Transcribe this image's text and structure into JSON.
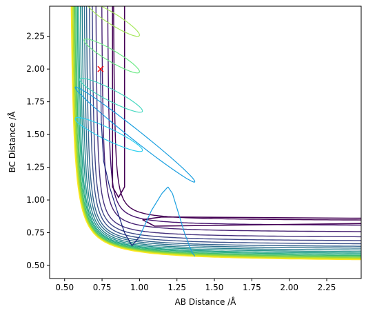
{
  "chart_data": {
    "type": "contour",
    "xlabel": "AB Distance /Å",
    "ylabel": "BC Distance /Å",
    "xlim": [
      0.4,
      2.48
    ],
    "ylim": [
      0.4,
      2.48
    ],
    "xticks": [
      "0.50",
      "0.75",
      "1.00",
      "1.25",
      "1.50",
      "1.75",
      "2.00",
      "2.25"
    ],
    "yticks": [
      "0.50",
      "0.75",
      "1.00",
      "1.25",
      "1.50",
      "1.75",
      "2.00",
      "2.25"
    ],
    "grid": false,
    "colormap": "viridis",
    "marker": {
      "symbol": "x",
      "x": 0.74,
      "y": 2.0,
      "color": "#ff0000"
    },
    "trajectory": {
      "color_start": "#1a9fe0",
      "color_end": "#1a237e",
      "points": [
        [
          0.74,
          2.0
        ],
        [
          0.745,
          1.6
        ],
        [
          0.76,
          1.3
        ],
        [
          0.8,
          1.1
        ],
        [
          0.85,
          0.92
        ],
        [
          0.9,
          0.75
        ],
        [
          0.95,
          0.65
        ],
        [
          1.0,
          0.72
        ],
        [
          1.08,
          0.92
        ],
        [
          1.15,
          1.05
        ],
        [
          1.19,
          1.1
        ],
        [
          1.22,
          1.05
        ],
        [
          1.26,
          0.9
        ],
        [
          1.3,
          0.75
        ],
        [
          1.35,
          0.6
        ],
        [
          1.37,
          0.57
        ]
      ]
    },
    "oscillation_loops": [
      {
        "y": 2.38,
        "x_start": 0.65,
        "x_end": 1.0,
        "color": "#a6e85c"
      },
      {
        "y": 2.1,
        "x_start": 0.63,
        "x_end": 1.0,
        "color": "#6fea88"
      },
      {
        "y": 1.8,
        "x_start": 0.6,
        "x_end": 1.02,
        "color": "#46d8c0"
      },
      {
        "y": 1.5,
        "x_start": 0.57,
        "x_end": 1.02,
        "color": "#2ad0f0"
      },
      {
        "y": 1.5,
        "x_start": 0.57,
        "x_end": 1.37,
        "color": "#1a9fe0"
      }
    ],
    "contour_levels": [
      {
        "ra": 0.82,
        "rb": 0.84,
        "color": "#440154"
      },
      {
        "ra": 0.78,
        "rb": 0.8,
        "color": "#46136e"
      },
      {
        "ra": 0.74,
        "rb": 0.75,
        "color": "#482374"
      },
      {
        "ra": 0.7,
        "rb": 0.71,
        "color": "#46327e"
      },
      {
        "ra": 0.675,
        "rb": 0.68,
        "color": "#404688"
      },
      {
        "ra": 0.655,
        "rb": 0.655,
        "color": "#3b528b"
      },
      {
        "ra": 0.635,
        "rb": 0.635,
        "color": "#33638d"
      },
      {
        "ra": 0.62,
        "rb": 0.62,
        "color": "#2d708e"
      },
      {
        "ra": 0.605,
        "rb": 0.605,
        "color": "#277f8e"
      },
      {
        "ra": 0.592,
        "rb": 0.592,
        "color": "#21918c"
      },
      {
        "ra": 0.58,
        "rb": 0.58,
        "color": "#1fa088"
      },
      {
        "ra": 0.57,
        "rb": 0.57,
        "color": "#28ae80"
      },
      {
        "ra": 0.56,
        "rb": 0.56,
        "color": "#3fbc73"
      },
      {
        "ra": 0.552,
        "rb": 0.552,
        "color": "#5ec962"
      },
      {
        "ra": 0.545,
        "rb": 0.545,
        "color": "#84d44b"
      },
      {
        "ra": 0.538,
        "rb": 0.538,
        "color": "#addc30"
      },
      {
        "ra": 0.531,
        "rb": 0.531,
        "color": "#d8e219"
      },
      {
        "ra": 0.525,
        "rb": 0.525,
        "color": "#fde725"
      }
    ]
  }
}
